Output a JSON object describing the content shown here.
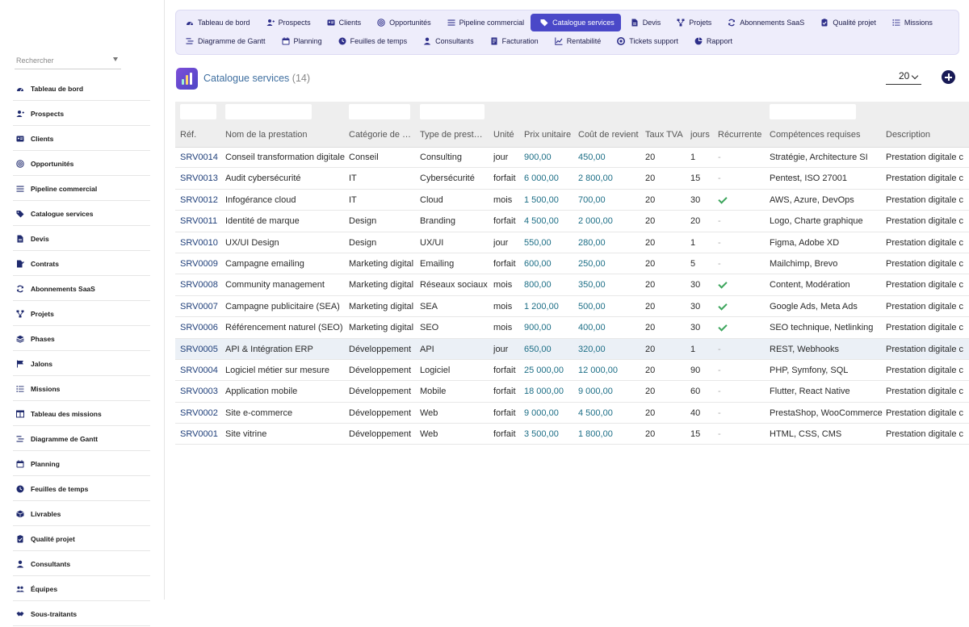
{
  "search": {
    "placeholder": "Rechercher"
  },
  "sidebar": {
    "items": [
      {
        "label": "Tableau de bord",
        "icon": "dashboard-icon"
      },
      {
        "label": "Prospects",
        "icon": "user-plus-icon"
      },
      {
        "label": "Clients",
        "icon": "id-card-icon"
      },
      {
        "label": "Opportunités",
        "icon": "target-icon"
      },
      {
        "label": "Pipeline commercial",
        "icon": "list-icon"
      },
      {
        "label": "Catalogue services",
        "icon": "tags-icon"
      },
      {
        "label": "Devis",
        "icon": "file-icon"
      },
      {
        "label": "Contrats",
        "icon": "file-signature-icon"
      },
      {
        "label": "Abonnements SaaS",
        "icon": "sync-icon"
      },
      {
        "label": "Projets",
        "icon": "project-diagram-icon"
      },
      {
        "label": "Phases",
        "icon": "layers-icon"
      },
      {
        "label": "Jalons",
        "icon": "flag-icon"
      },
      {
        "label": "Missions",
        "icon": "tasks-icon"
      },
      {
        "label": "Tableau des missions",
        "icon": "columns-icon"
      },
      {
        "label": "Diagramme de Gantt",
        "icon": "gantt-icon"
      },
      {
        "label": "Planning",
        "icon": "calendar-icon"
      },
      {
        "label": "Feuilles de temps",
        "icon": "clock-icon"
      },
      {
        "label": "Livrables",
        "icon": "box-icon"
      },
      {
        "label": "Qualité projet",
        "icon": "clipboard-check-icon"
      },
      {
        "label": "Consultants",
        "icon": "user-icon"
      },
      {
        "label": "Équipes",
        "icon": "users-icon"
      },
      {
        "label": "Sous-traitants",
        "icon": "handshake-icon"
      }
    ]
  },
  "topnav": {
    "row1": [
      {
        "label": "Tableau de bord",
        "icon": "dashboard-icon"
      },
      {
        "label": "Prospects",
        "icon": "user-plus-icon"
      },
      {
        "label": "Clients",
        "icon": "id-card-icon"
      },
      {
        "label": "Opportunités",
        "icon": "target-icon"
      },
      {
        "label": "Pipeline commercial",
        "icon": "list-icon"
      },
      {
        "label": "Catalogue services",
        "icon": "tags-icon",
        "active": true
      },
      {
        "label": "Devis",
        "icon": "file-icon"
      },
      {
        "label": "Projets",
        "icon": "project-diagram-icon"
      },
      {
        "label": "Abonnements SaaS",
        "icon": "sync-icon"
      },
      {
        "label": "Qualité projet",
        "icon": "clipboard-check-icon"
      },
      {
        "label": "Missions",
        "icon": "tasks-icon"
      }
    ],
    "row2": [
      {
        "label": "Diagramme de Gantt",
        "icon": "gantt-icon"
      },
      {
        "label": "Planning",
        "icon": "calendar-icon"
      },
      {
        "label": "Feuilles de temps",
        "icon": "clock-icon"
      },
      {
        "label": "Consultants",
        "icon": "user-icon"
      },
      {
        "label": "Facturation",
        "icon": "invoice-icon"
      },
      {
        "label": "Rentabilité",
        "icon": "chart-line-icon"
      },
      {
        "label": "Tickets support",
        "icon": "lifebuoy-icon"
      },
      {
        "label": "Rapport",
        "icon": "chart-pie-icon"
      }
    ]
  },
  "header": {
    "title": "Catalogue services",
    "count": "(14)",
    "page_size": "20"
  },
  "colors": {
    "accent": "#4a48c8",
    "nav_bg": "#eeedfb",
    "title": "#3f6fa0",
    "check": "#3ca55c",
    "add_button": "#181a55"
  },
  "table": {
    "columns": [
      "Réf.",
      "Nom de la prestation",
      "Catégorie de …",
      "Type de prest…",
      "Unité",
      "Prix unitaire",
      "Coût de revient",
      "Taux TVA",
      "jours",
      "Récurrente",
      "Compétences requises",
      "Description"
    ],
    "rows": [
      [
        "SRV0014",
        "Conseil transformation digitale",
        "Conseil",
        "Consulting",
        "jour",
        "900,00",
        "450,00",
        "20",
        "1",
        false,
        "Stratégie, Architecture SI",
        "Prestation digitale c"
      ],
      [
        "SRV0013",
        "Audit cybersécurité",
        "IT",
        "Cybersécurité",
        "forfait",
        "6 000,00",
        "2 800,00",
        "20",
        "15",
        false,
        "Pentest, ISO 27001",
        "Prestation digitale c"
      ],
      [
        "SRV0012",
        "Infogérance cloud",
        "IT",
        "Cloud",
        "mois",
        "1 500,00",
        "700,00",
        "20",
        "30",
        true,
        "AWS, Azure, DevOps",
        "Prestation digitale c"
      ],
      [
        "SRV0011",
        "Identité de marque",
        "Design",
        "Branding",
        "forfait",
        "4 500,00",
        "2 000,00",
        "20",
        "20",
        false,
        "Logo, Charte graphique",
        "Prestation digitale c"
      ],
      [
        "SRV0010",
        "UX/UI Design",
        "Design",
        "UX/UI",
        "jour",
        "550,00",
        "280,00",
        "20",
        "1",
        false,
        "Figma, Adobe XD",
        "Prestation digitale c"
      ],
      [
        "SRV0009",
        "Campagne emailing",
        "Marketing digital",
        "Emailing",
        "forfait",
        "600,00",
        "250,00",
        "20",
        "5",
        false,
        "Mailchimp, Brevo",
        "Prestation digitale c"
      ],
      [
        "SRV0008",
        "Community management",
        "Marketing digital",
        "Réseaux sociaux",
        "mois",
        "800,00",
        "350,00",
        "20",
        "30",
        true,
        "Content, Modération",
        "Prestation digitale c"
      ],
      [
        "SRV0007",
        "Campagne publicitaire (SEA)",
        "Marketing digital",
        "SEA",
        "mois",
        "1 200,00",
        "500,00",
        "20",
        "30",
        true,
        "Google Ads, Meta Ads",
        "Prestation digitale c"
      ],
      [
        "SRV0006",
        "Référencement naturel (SEO)",
        "Marketing digital",
        "SEO",
        "mois",
        "900,00",
        "400,00",
        "20",
        "30",
        true,
        "SEO technique, Netlinking",
        "Prestation digitale c"
      ],
      [
        "SRV0005",
        "API & Intégration ERP",
        "Développement",
        "API",
        "jour",
        "650,00",
        "320,00",
        "20",
        "1",
        false,
        "REST, Webhooks",
        "Prestation digitale c"
      ],
      [
        "SRV0004",
        "Logiciel métier sur mesure",
        "Développement",
        "Logiciel",
        "forfait",
        "25 000,00",
        "12 000,00",
        "20",
        "90",
        false,
        "PHP, Symfony, SQL",
        "Prestation digitale c"
      ],
      [
        "SRV0003",
        "Application mobile",
        "Développement",
        "Mobile",
        "forfait",
        "18 000,00",
        "9 000,00",
        "20",
        "60",
        false,
        "Flutter, React Native",
        "Prestation digitale c"
      ],
      [
        "SRV0002",
        "Site e-commerce",
        "Développement",
        "Web",
        "forfait",
        "9 000,00",
        "4 500,00",
        "20",
        "40",
        false,
        "PrestaShop, WooCommerce",
        "Prestation digitale c"
      ],
      [
        "SRV0001",
        "Site vitrine",
        "Développement",
        "Web",
        "forfait",
        "3 500,00",
        "1 800,00",
        "20",
        "15",
        false,
        "HTML, CSS, CMS",
        "Prestation digitale c"
      ]
    ],
    "highlighted_row": 9,
    "dash": "-"
  }
}
